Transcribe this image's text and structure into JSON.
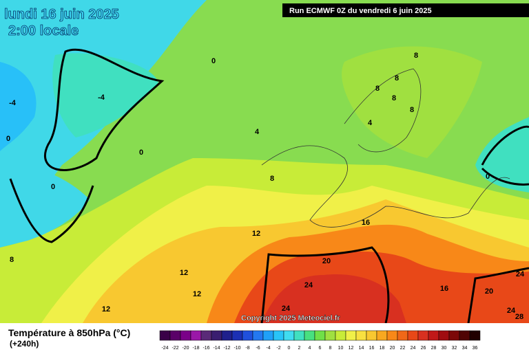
{
  "map": {
    "title": "lundi 16 juin 2025",
    "subtitle": "2:00 locale",
    "run": "Run ECMWF 0Z du vendredi 6 juin 2025",
    "copyright": "Copyright 2025 Meteociel.fr",
    "contour_labels": [
      0,
      0,
      0,
      0,
      0,
      -4,
      -4,
      4,
      4,
      8,
      8,
      8,
      8,
      8,
      8,
      8,
      12,
      12,
      12,
      12,
      16,
      16,
      20,
      20,
      24,
      24,
      24,
      24,
      28
    ]
  },
  "legend": {
    "title": "Température à 850hPa (°C)",
    "subtitle": "(+240h)",
    "labels": [
      -24,
      -22,
      -20,
      -18,
      -16,
      -14,
      -12,
      -10,
      -8,
      -6,
      -4,
      -2,
      0,
      2,
      4,
      6,
      8,
      10,
      12,
      14,
      16,
      18,
      20,
      22,
      24,
      26,
      28,
      30,
      32,
      34,
      36
    ],
    "colors": [
      "#3a0048",
      "#5a0068",
      "#7a0088",
      "#9a18a8",
      "#5a2a78",
      "#3a1e70",
      "#20208c",
      "#1c30b4",
      "#2050dc",
      "#2478f0",
      "#20a0f8",
      "#28c4f8",
      "#40dcf0",
      "#40e0c0",
      "#48e080",
      "#70e048",
      "#a0e040",
      "#c8ec38",
      "#f0f048",
      "#f8e040",
      "#f8c830",
      "#f8a820",
      "#f88818",
      "#f06818",
      "#e84818",
      "#d83020",
      "#c01818",
      "#a00c10",
      "#7c0808",
      "#500404",
      "#200000"
    ]
  }
}
